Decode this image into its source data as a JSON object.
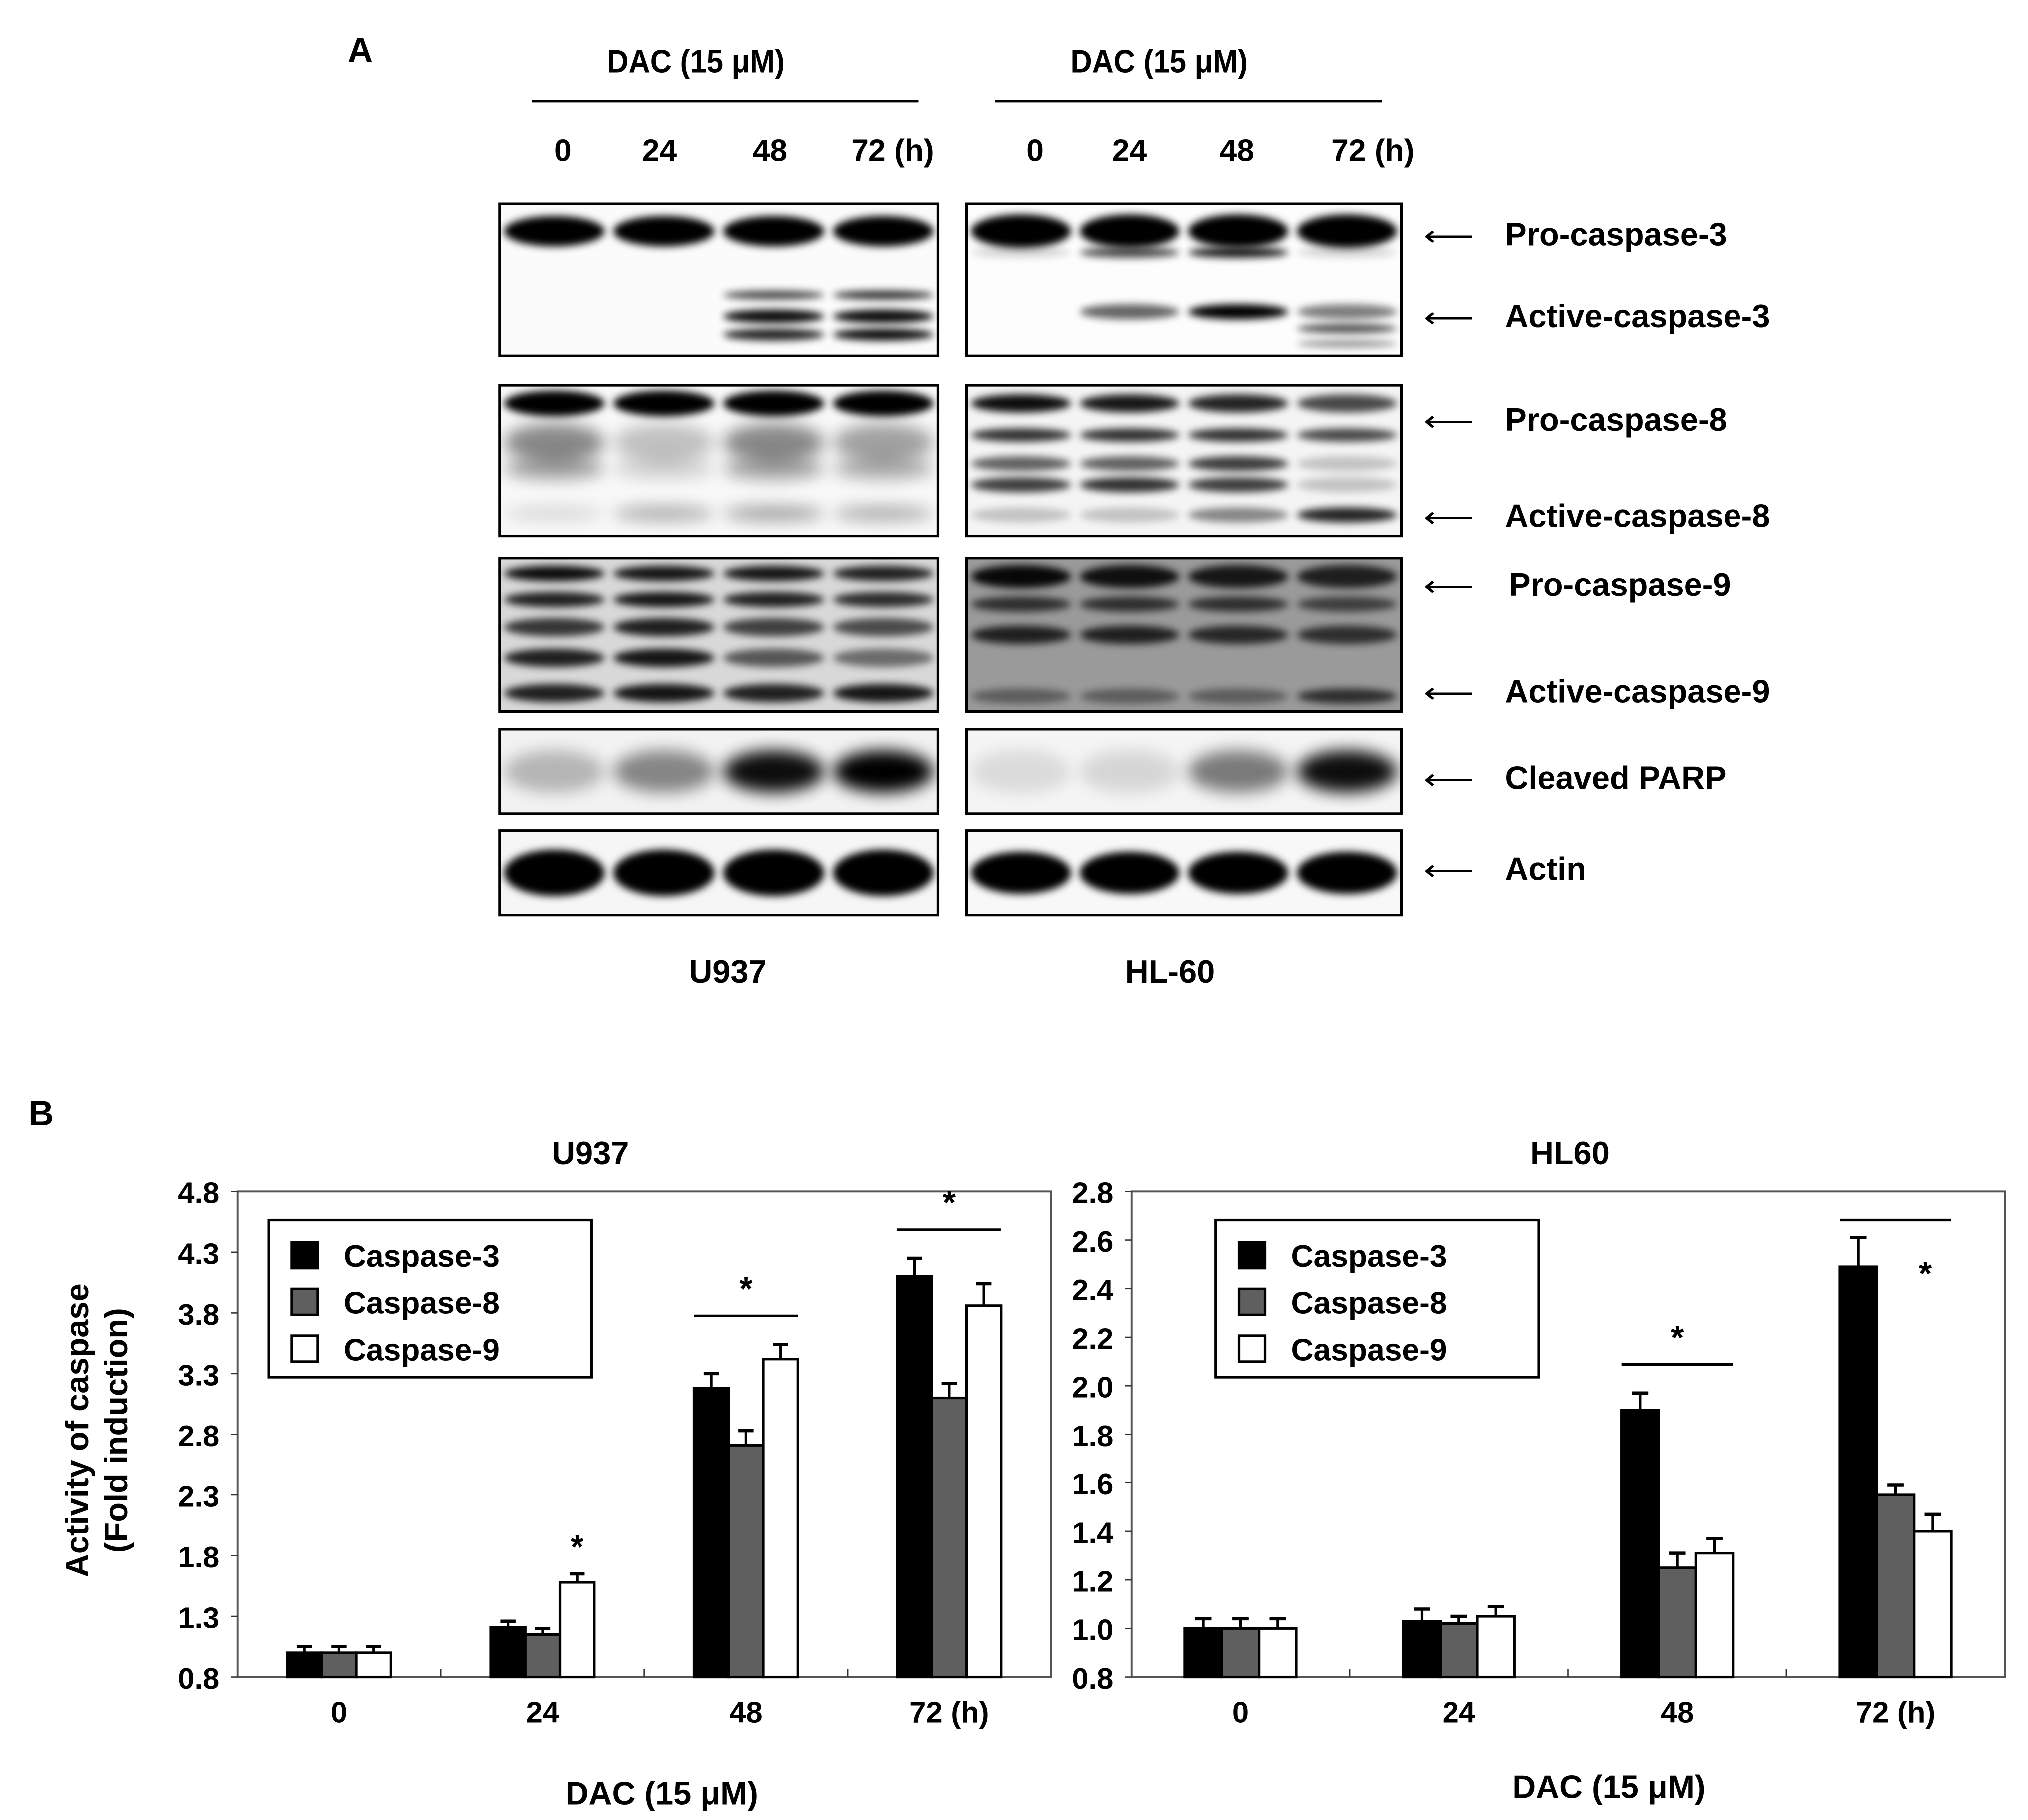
{
  "panel_a": {
    "letter": "A",
    "treatment_label": "DAC (15 μM)",
    "time_labels": [
      "0",
      "24",
      "48",
      "72 (h)"
    ],
    "cell_lines": [
      "U937",
      "HL-60"
    ],
    "band_labels": [
      "Pro-caspase-3",
      "Active-caspase-3",
      "Pro-caspase-8",
      "Active-caspase-8",
      "Pro-caspase-9",
      "Active-caspase-9",
      "Cleaved PARP",
      "Actin"
    ]
  },
  "panel_b": {
    "letter": "B",
    "ylabel_line1": "Activity of caspase",
    "ylabel_line2": "(Fold induction)"
  },
  "chart_data": [
    {
      "type": "bar",
      "title": "U937",
      "xlabel": "DAC (15 μM)",
      "ylabel": "Activity of caspase (Fold induction)",
      "categories": [
        "0",
        "24",
        "48",
        "72 (h)"
      ],
      "ylim": [
        0.8,
        4.8
      ],
      "yticks": [
        "0.8",
        "1.3",
        "1.8",
        "2.3",
        "2.8",
        "3.3",
        "3.8",
        "4.3",
        "4.8"
      ],
      "legend": "top-left",
      "series": [
        {
          "name": "Caspase-3",
          "color": "#000000",
          "values": [
            1.0,
            1.21,
            3.18,
            4.1
          ],
          "errors": [
            0.05,
            0.05,
            0.12,
            0.15
          ]
        },
        {
          "name": "Caspase-8",
          "color": "#5f5f5f",
          "values": [
            1.0,
            1.15,
            2.71,
            3.1
          ],
          "errors": [
            0.05,
            0.05,
            0.12,
            0.12
          ]
        },
        {
          "name": "Caspase-9",
          "color": "#ffffff",
          "values": [
            1.0,
            1.58,
            3.42,
            3.86
          ],
          "errors": [
            0.05,
            0.07,
            0.12,
            0.18
          ]
        }
      ],
      "significance": [
        {
          "category": "24",
          "mark": "*",
          "line": false
        },
        {
          "category": "48",
          "mark": "*",
          "line": true
        },
        {
          "category": "72 (h)",
          "mark": "*",
          "line": true
        }
      ]
    },
    {
      "type": "bar",
      "title": "HL60",
      "xlabel": "DAC (15 μM)",
      "categories": [
        "0",
        "24",
        "48",
        "72 (h)"
      ],
      "ylim": [
        0.8,
        2.8
      ],
      "yticks": [
        "0.8",
        "1.0",
        "1.2",
        "1.4",
        "1.6",
        "1.8",
        "2.0",
        "2.2",
        "2.4",
        "2.6",
        "2.8"
      ],
      "legend": "top-left",
      "series": [
        {
          "name": "Caspase-3",
          "color": "#000000",
          "values": [
            1.0,
            1.03,
            1.9,
            2.49
          ],
          "errors": [
            0.04,
            0.05,
            0.07,
            0.12
          ]
        },
        {
          "name": "Caspase-8",
          "color": "#5f5f5f",
          "values": [
            1.0,
            1.02,
            1.25,
            1.55
          ],
          "errors": [
            0.04,
            0.03,
            0.06,
            0.04
          ]
        },
        {
          "name": "Caspase-9",
          "color": "#ffffff",
          "values": [
            1.0,
            1.05,
            1.31,
            1.4
          ],
          "errors": [
            0.04,
            0.04,
            0.06,
            0.07
          ]
        }
      ],
      "significance": [
        {
          "category": "48",
          "mark": "*",
          "line": true
        },
        {
          "category": "72 (h)",
          "mark": "*",
          "line": true
        }
      ]
    }
  ]
}
